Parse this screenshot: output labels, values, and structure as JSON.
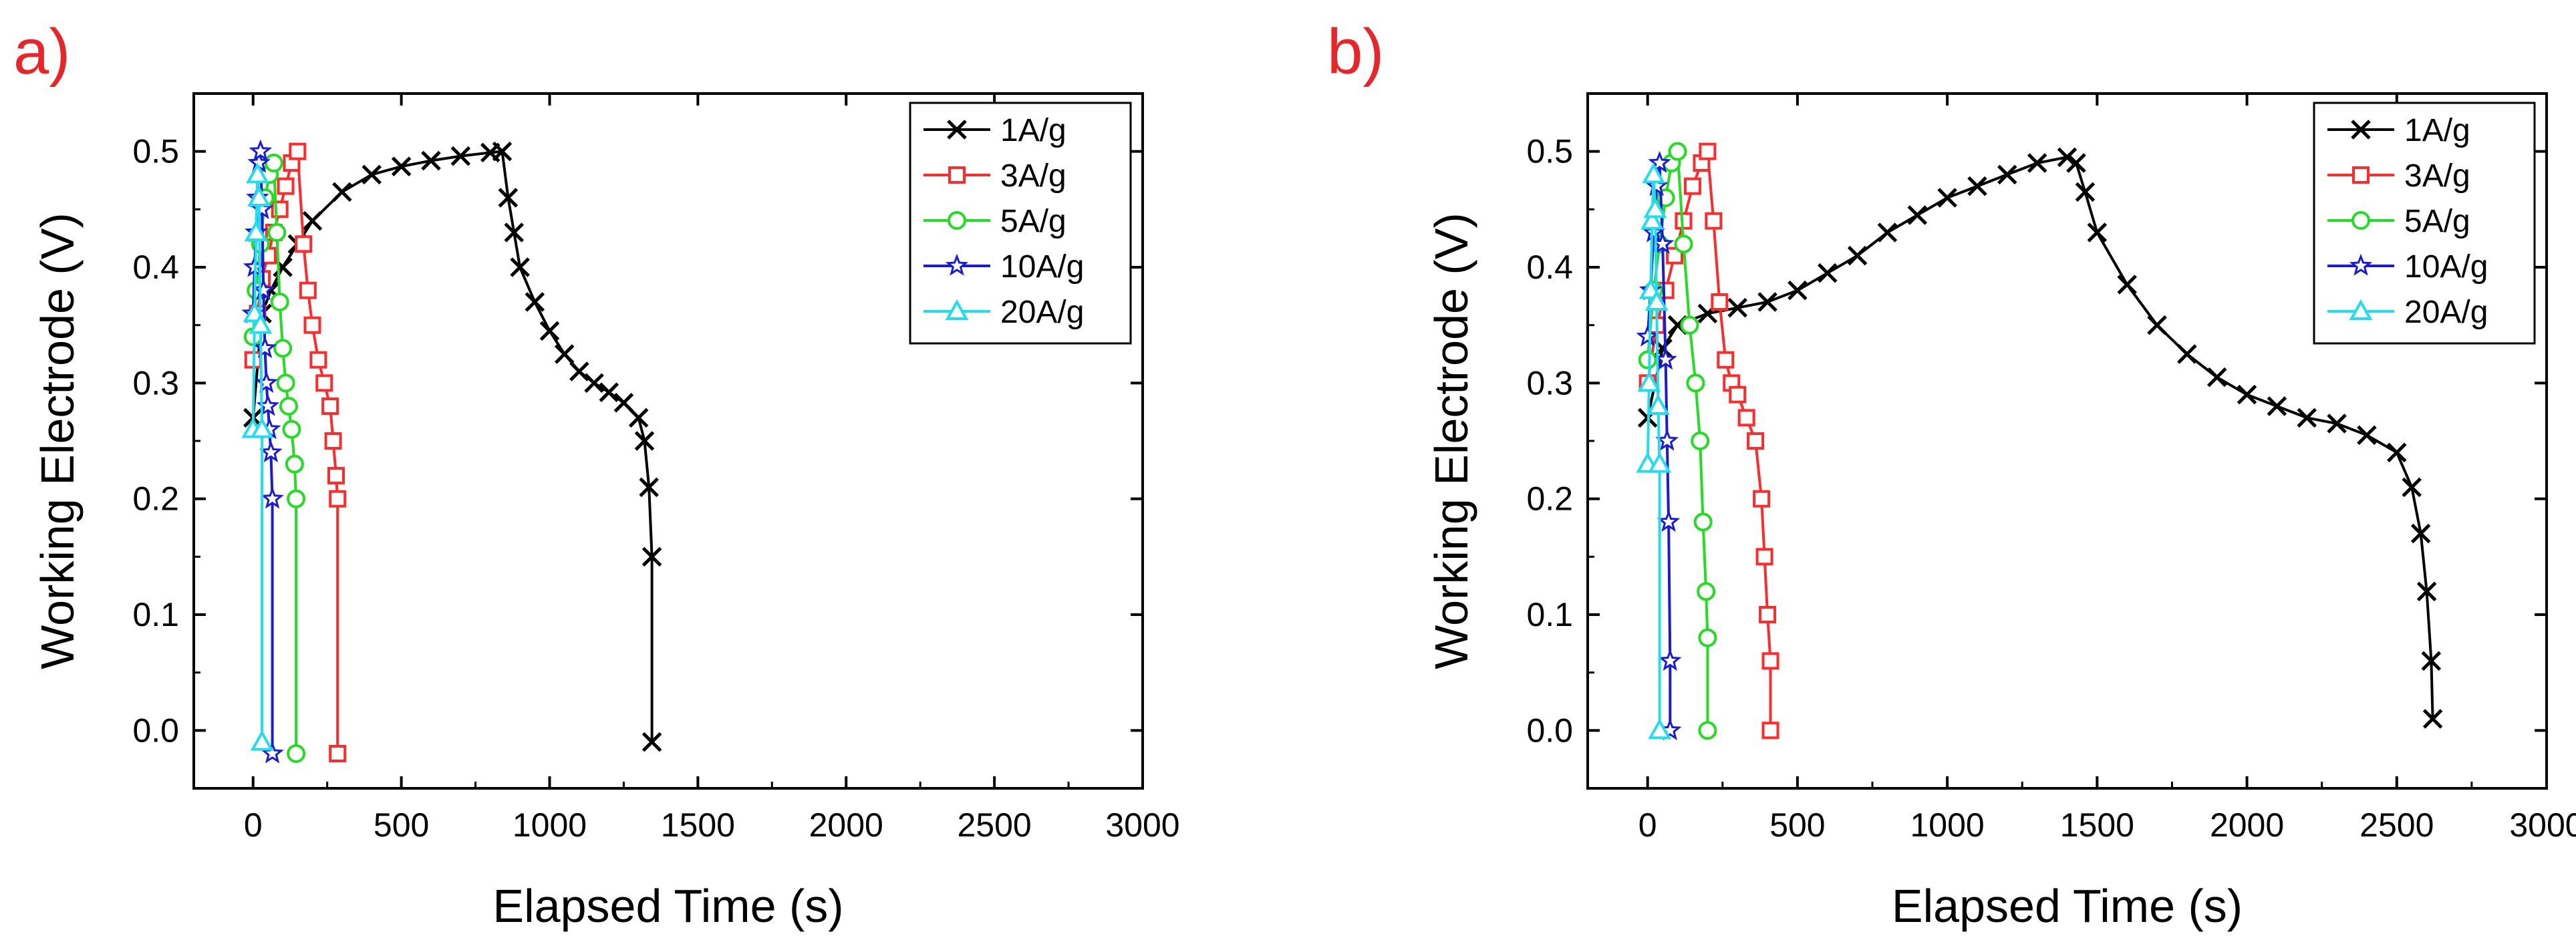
{
  "figure": {
    "panel_labels": [
      "a)",
      "b)"
    ],
    "panel_label_color": "#e8262a"
  },
  "chart_data": [
    {
      "panel": "a)",
      "type": "line",
      "xlabel": "Elapsed Time (s)",
      "ylabel": "Working Electrode (V)",
      "xlim": [
        -200,
        3000
      ],
      "ylim": [
        -0.05,
        0.55
      ],
      "xticks": [
        0,
        500,
        1000,
        1500,
        2000,
        2500,
        3000
      ],
      "yticks": [
        0.0,
        0.1,
        0.2,
        0.3,
        0.4,
        0.5
      ],
      "ytick_labels": [
        "0.0",
        "0.1",
        "0.2",
        "0.3",
        "0.4",
        "0.5"
      ],
      "legend": "top-right",
      "series": [
        {
          "name": "1A/g",
          "color": "#000000",
          "marker": "x",
          "x": [
            0,
            30,
            60,
            100,
            150,
            200,
            300,
            400,
            500,
            600,
            700,
            800,
            840,
            860,
            880,
            900,
            950,
            1000,
            1050,
            1100,
            1150,
            1200,
            1250,
            1300,
            1320,
            1335,
            1345,
            1345
          ],
          "y": [
            0.27,
            0.36,
            0.38,
            0.4,
            0.42,
            0.44,
            0.465,
            0.48,
            0.487,
            0.492,
            0.496,
            0.499,
            0.5,
            0.46,
            0.43,
            0.4,
            0.37,
            0.345,
            0.325,
            0.31,
            0.3,
            0.292,
            0.283,
            0.27,
            0.25,
            0.21,
            0.15,
            -0.01
          ]
        },
        {
          "name": "3A/g",
          "color": "#ff2a2a",
          "marker": "square",
          "x": [
            0,
            15,
            30,
            50,
            70,
            90,
            110,
            130,
            150,
            170,
            185,
            200,
            220,
            240,
            260,
            270,
            280,
            285,
            285
          ],
          "y": [
            0.32,
            0.36,
            0.39,
            0.41,
            0.43,
            0.45,
            0.47,
            0.49,
            0.5,
            0.42,
            0.38,
            0.35,
            0.32,
            0.3,
            0.28,
            0.25,
            0.22,
            0.2,
            -0.02
          ]
        },
        {
          "name": "5A/g",
          "color": "#22dd22",
          "marker": "circle",
          "x": [
            0,
            10,
            25,
            40,
            55,
            70,
            80,
            90,
            100,
            110,
            120,
            130,
            140,
            145,
            145
          ],
          "y": [
            0.34,
            0.38,
            0.42,
            0.46,
            0.48,
            0.49,
            0.43,
            0.37,
            0.33,
            0.3,
            0.28,
            0.26,
            0.23,
            0.2,
            -0.02
          ]
        },
        {
          "name": "10A/g",
          "color": "#1a1adb",
          "marker": "star",
          "x": [
            0,
            5,
            10,
            15,
            20,
            25,
            30,
            35,
            40,
            45,
            50,
            55,
            60,
            65,
            65
          ],
          "y": [
            0.36,
            0.4,
            0.43,
            0.46,
            0.49,
            0.5,
            0.45,
            0.38,
            0.33,
            0.3,
            0.28,
            0.26,
            0.24,
            0.2,
            -0.02
          ]
        },
        {
          "name": "20A/g",
          "color": "#22ddee",
          "marker": "triangle",
          "x": [
            0,
            5,
            10,
            15,
            20,
            25,
            30,
            30
          ],
          "y": [
            0.26,
            0.36,
            0.43,
            0.48,
            0.46,
            0.35,
            0.26,
            -0.01
          ]
        }
      ]
    },
    {
      "panel": "b)",
      "type": "line",
      "xlabel": "Elapsed Time (s)",
      "ylabel": "Working Electrode (V)",
      "xlim": [
        -200,
        3000
      ],
      "ylim": [
        -0.05,
        0.55
      ],
      "xticks": [
        0,
        500,
        1000,
        1500,
        2000,
        2500,
        3000
      ],
      "yticks": [
        0.0,
        0.1,
        0.2,
        0.3,
        0.4,
        0.5
      ],
      "ytick_labels": [
        "0.0",
        "0.1",
        "0.2",
        "0.3",
        "0.4",
        "0.5"
      ],
      "legend": "top-right",
      "series": [
        {
          "name": "1A/g",
          "color": "#000000",
          "marker": "x",
          "x": [
            0,
            50,
            100,
            200,
            300,
            400,
            500,
            600,
            700,
            800,
            900,
            1000,
            1100,
            1200,
            1300,
            1400,
            1430,
            1460,
            1500,
            1600,
            1700,
            1800,
            1900,
            2000,
            2100,
            2200,
            2300,
            2400,
            2500,
            2550,
            2580,
            2600,
            2615,
            2620
          ],
          "y": [
            0.27,
            0.33,
            0.35,
            0.36,
            0.365,
            0.37,
            0.38,
            0.395,
            0.41,
            0.43,
            0.445,
            0.46,
            0.47,
            0.48,
            0.49,
            0.495,
            0.49,
            0.465,
            0.43,
            0.385,
            0.35,
            0.325,
            0.305,
            0.29,
            0.28,
            0.27,
            0.265,
            0.255,
            0.24,
            0.21,
            0.17,
            0.12,
            0.06,
            0.01
          ]
        },
        {
          "name": "3A/g",
          "color": "#ff2a2a",
          "marker": "square",
          "x": [
            0,
            30,
            60,
            90,
            120,
            150,
            180,
            200,
            220,
            240,
            260,
            280,
            300,
            330,
            360,
            380,
            390,
            400,
            410,
            410
          ],
          "y": [
            0.3,
            0.35,
            0.38,
            0.41,
            0.44,
            0.47,
            0.49,
            0.5,
            0.44,
            0.37,
            0.32,
            0.3,
            0.29,
            0.27,
            0.25,
            0.2,
            0.15,
            0.1,
            0.06,
            0.0
          ]
        },
        {
          "name": "5A/g",
          "color": "#22dd22",
          "marker": "circle",
          "x": [
            0,
            20,
            40,
            60,
            80,
            100,
            120,
            140,
            160,
            175,
            185,
            195,
            200,
            200
          ],
          "y": [
            0.32,
            0.38,
            0.42,
            0.46,
            0.49,
            0.5,
            0.42,
            0.35,
            0.3,
            0.25,
            0.18,
            0.12,
            0.08,
            0.0
          ]
        },
        {
          "name": "10A/g",
          "color": "#1a1adb",
          "marker": "star",
          "x": [
            0,
            10,
            20,
            30,
            40,
            50,
            60,
            65,
            70,
            75,
            75
          ],
          "y": [
            0.34,
            0.38,
            0.43,
            0.47,
            0.49,
            0.42,
            0.32,
            0.25,
            0.18,
            0.06,
            0.0
          ]
        },
        {
          "name": "20A/g",
          "color": "#22ddee",
          "marker": "triangle",
          "x": [
            0,
            5,
            10,
            15,
            20,
            25,
            30,
            35,
            40,
            40
          ],
          "y": [
            0.23,
            0.3,
            0.38,
            0.44,
            0.48,
            0.45,
            0.37,
            0.28,
            0.23,
            0.0
          ]
        }
      ]
    }
  ]
}
